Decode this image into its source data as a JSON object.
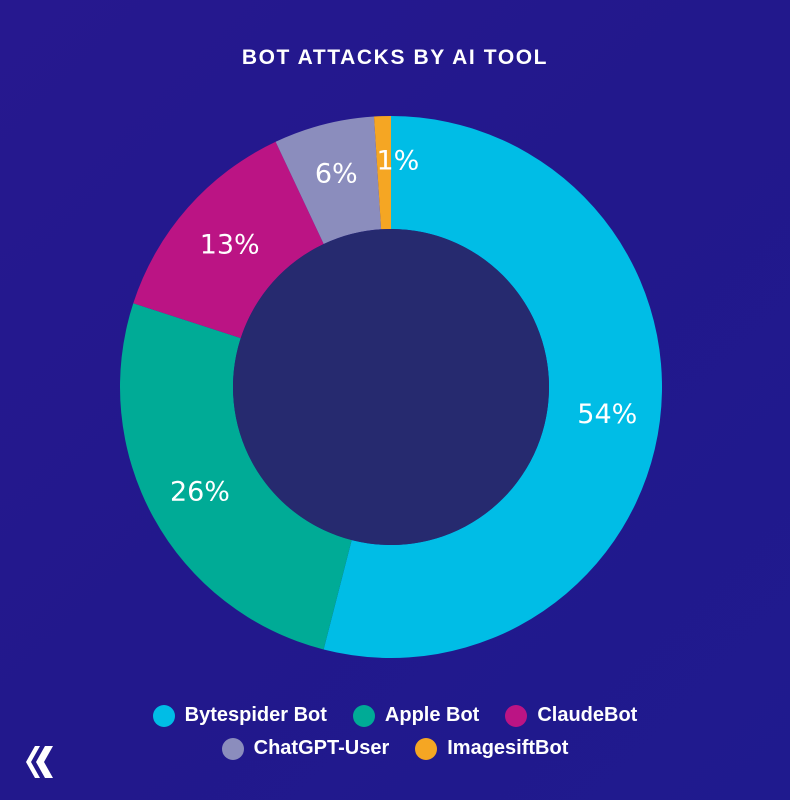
{
  "title": "BOT ATTACKS BY AI TOOL",
  "chart_data": {
    "type": "pie",
    "title": "BOT ATTACKS BY AI TOOL",
    "categories": [
      "Bytespider Bot",
      "Apple Bot",
      "ClaudeBot",
      "ChatGPT-User",
      "ImagesiftBot"
    ],
    "values": [
      54,
      26,
      13,
      6,
      1
    ],
    "labels": [
      "54%",
      "26%",
      "13%",
      "6%",
      "1%"
    ],
    "colors": [
      "#00bde6",
      "#00ab96",
      "#bb1484",
      "#8b8dbd",
      "#f5a623"
    ],
    "donut": true,
    "legend": "bottom"
  },
  "legend": {
    "rows": [
      [
        {
          "label": "Bytespider Bot",
          "color": "#00bde6"
        },
        {
          "label": "Apple Bot",
          "color": "#00ab96"
        },
        {
          "label": "ClaudeBot",
          "color": "#bb1484"
        }
      ],
      [
        {
          "label": "ChatGPT-User",
          "color": "#8b8dbd"
        },
        {
          "label": "ImagesiftBot",
          "color": "#f5a623"
        }
      ]
    ]
  },
  "colors": {
    "hole": "#262a6f",
    "logo": "#ffffff"
  }
}
